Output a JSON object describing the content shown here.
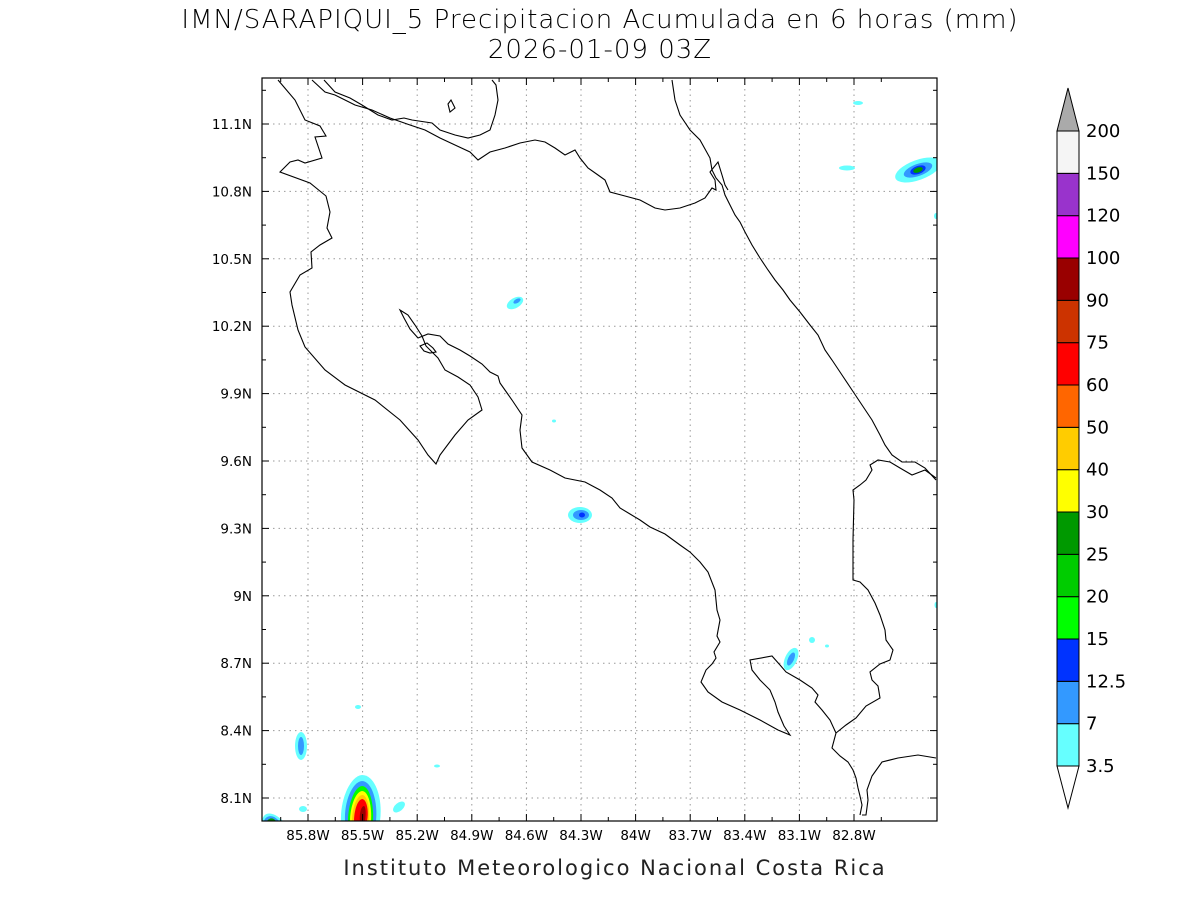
{
  "title": "IMN/SARAPIQUI_5 Precipitacion Acumulada en 6 horas (mm)",
  "subtitle": "2026-01-09 03Z",
  "footer": "Instituto Meteorologico Nacional Costa Rica",
  "map": {
    "lon_range": [
      -86.0,
      -82.9
    ],
    "lat_range": [
      8.0,
      11.3
    ],
    "lon_ticks": [
      "85.8W",
      "85.5W",
      "85.2W",
      "84.9W",
      "84.6W",
      "84.3W",
      "84W",
      "83.7W",
      "83.4W",
      "83.1W",
      "82.8W"
    ],
    "lat_ticks": [
      "11.1N",
      "10.8N",
      "10.5N",
      "10.2N",
      "9.9N",
      "9.6N",
      "9.3N",
      "9N",
      "8.7N",
      "8.4N",
      "8.1N"
    ],
    "grid": true
  },
  "colorbar": {
    "levels": [
      "3.5",
      "7",
      "12.5",
      "15",
      "20",
      "25",
      "30",
      "40",
      "50",
      "60",
      "75",
      "90",
      "100",
      "120",
      "150",
      "200"
    ],
    "colors": [
      "#66ffff",
      "#3399ff",
      "#0033ff",
      "#00ff00",
      "#00cc00",
      "#009900",
      "#ffff00",
      "#ffcc00",
      "#ff6600",
      "#ff0000",
      "#cc3300",
      "#990000",
      "#ff00ff",
      "#9933cc",
      "#f5f5f5"
    ],
    "over_color": "#aaaaaa",
    "under_color": "#ffffff"
  }
}
